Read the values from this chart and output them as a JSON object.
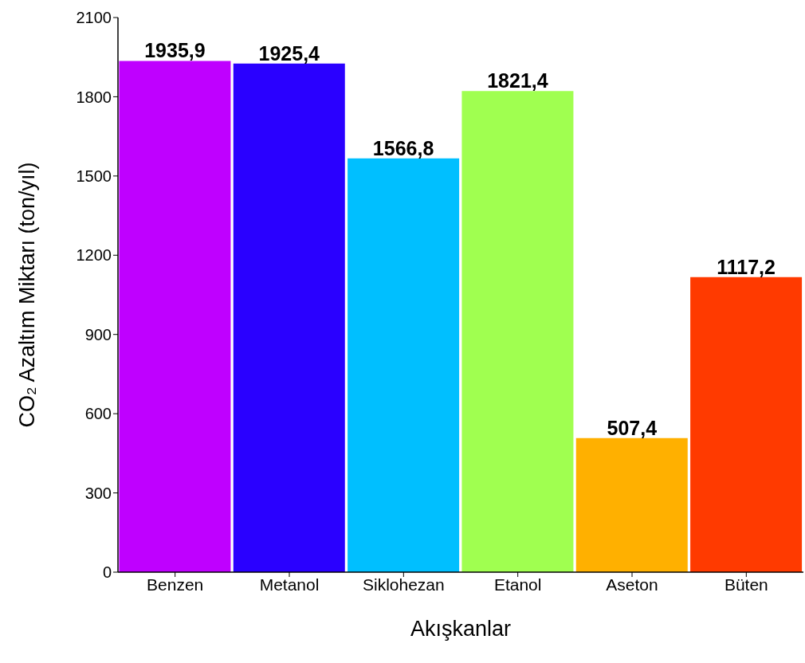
{
  "chart_data": {
    "type": "bar",
    "xlabel": "Akışkanlar",
    "ylabel": "CO₂ Azaltım Miktarı (ton/yıl)",
    "categories": [
      "Benzen",
      "Metanol",
      "Siklohezan",
      "Etanol",
      "Aseton",
      "Büten"
    ],
    "values": [
      1935.9,
      1925.4,
      1566.8,
      1821.4,
      507.4,
      1117.2
    ],
    "value_labels": [
      "1935,9",
      "1925,4",
      "1566,8",
      "1821,4",
      "507,4",
      "1117,2"
    ],
    "colors": [
      "#bf00ff",
      "#2a00ff",
      "#00bfff",
      "#a0ff50",
      "#ffb000",
      "#ff3a00"
    ],
    "ylim": [
      0,
      2100
    ],
    "yticks": [
      0,
      300,
      600,
      900,
      1200,
      1500,
      1800,
      2100
    ],
    "grid": false,
    "legend": false
  }
}
